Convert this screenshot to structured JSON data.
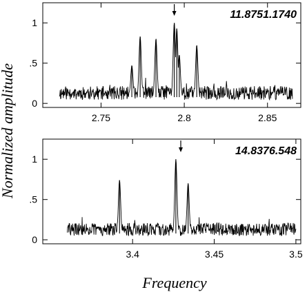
{
  "figure": {
    "ylabel": "Normalized  amplitude",
    "xlabel": "Frequency"
  },
  "chart_data": [
    {
      "type": "line",
      "title": "11.8751.1740",
      "xlim": [
        2.715,
        2.87
      ],
      "ylim": [
        -0.05,
        1.25
      ],
      "xticks": [
        2.75,
        2.8,
        2.85
      ],
      "xtick_labels": [
        "2.75",
        "2.8",
        "2.85"
      ],
      "yticks": [
        0,
        0.5,
        1
      ],
      "ytick_labels": [
        "0",
        ".5",
        "1"
      ],
      "x_range": [
        2.725,
        2.865
      ],
      "baseline": 0.13,
      "noise": 0.085,
      "seed": 11,
      "peaks": [
        {
          "x": 2.7685,
          "y": 0.47
        },
        {
          "x": 2.7735,
          "y": 0.83
        },
        {
          "x": 2.783,
          "y": 0.8
        },
        {
          "x": 2.794,
          "y": 1.0
        },
        {
          "x": 2.7955,
          "y": 0.93
        },
        {
          "x": 2.797,
          "y": 0.6
        },
        {
          "x": 2.8075,
          "y": 0.72
        }
      ],
      "marker_x": 2.794
    },
    {
      "type": "line",
      "title": "14.8376.548",
      "xlim": [
        3.345,
        3.503
      ],
      "ylim": [
        -0.05,
        1.25
      ],
      "xticks": [
        3.4,
        3.45,
        3.5
      ],
      "xtick_labels": [
        "3.4",
        "3.45",
        "3.5"
      ],
      "yticks": [
        0,
        0.5,
        1
      ],
      "ytick_labels": [
        "0",
        ".5",
        "1"
      ],
      "x_range": [
        3.36,
        3.5
      ],
      "baseline": 0.13,
      "noise": 0.08,
      "seed": 29,
      "peaks": [
        {
          "x": 3.392,
          "y": 0.74
        },
        {
          "x": 3.4265,
          "y": 1.0
        },
        {
          "x": 3.434,
          "y": 0.7
        }
      ],
      "marker_x": 3.4295
    }
  ]
}
